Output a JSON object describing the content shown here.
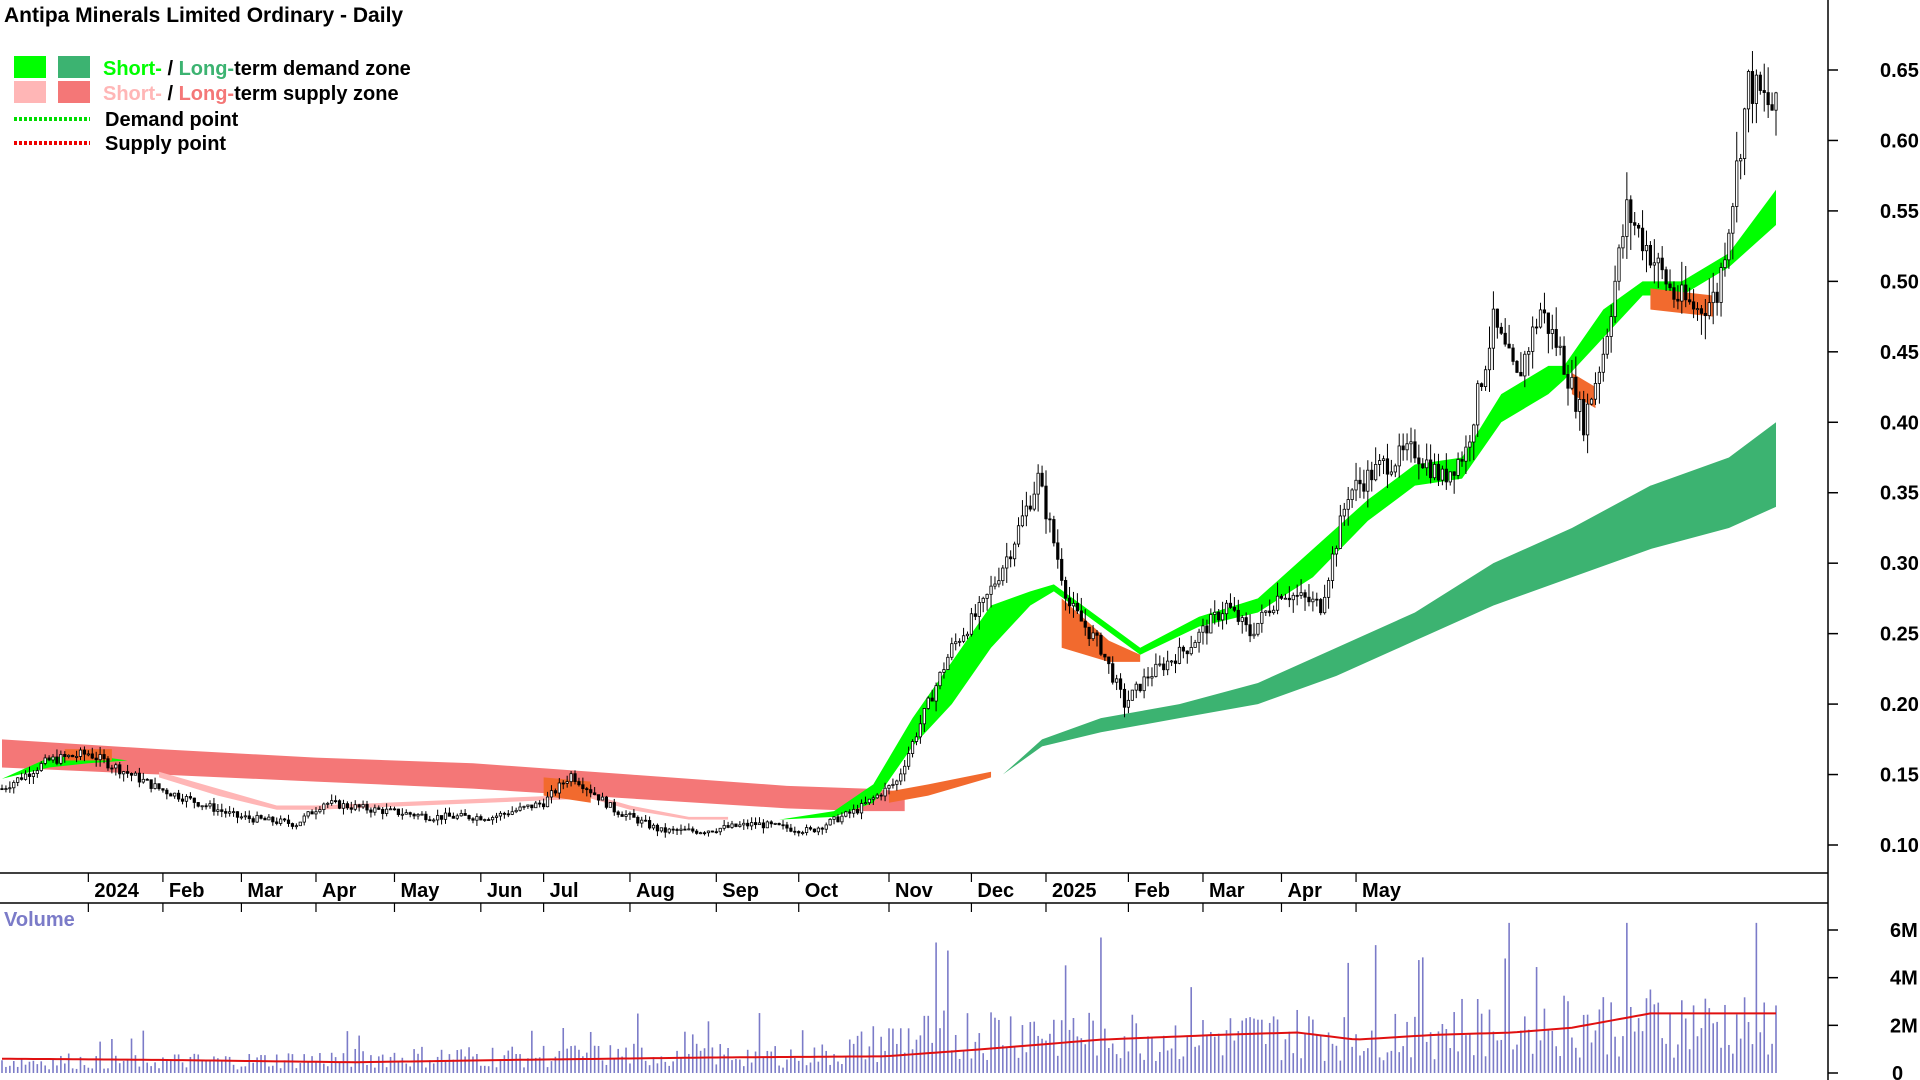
{
  "title": "Antipa Minerals Limited Ordinary - Daily",
  "legend": [
    {
      "part1": "Short-",
      "sep": " / ",
      "part2": "Long-",
      "rest": "term demand zone",
      "color1": "#00ff00",
      "color2": "#3cb371"
    },
    {
      "part1": "Short-",
      "sep": " / ",
      "part2": "Long-",
      "rest": "term supply zone",
      "color1": "#ffb6b6",
      "color2": "#f47777"
    },
    {
      "label": "Demand point",
      "color": "#00dd00"
    },
    {
      "label": "Supply point",
      "color": "#ee0000"
    }
  ],
  "colors": {
    "short_demand": "#00ff00",
    "long_demand": "#3cb371",
    "short_supply": "#ffb6b6",
    "long_supply": "#f47777",
    "transition": "#f26a2e",
    "volume_bars": "#7b7bc8",
    "volume_avg": "#e01010"
  },
  "chart_data": [
    {
      "type": "candlestick",
      "ylim": [
        0.06,
        0.7
      ],
      "yticks": [
        "0.65",
        "0.60",
        "0.55",
        "0.50",
        "0.45",
        "0.40",
        "0.35",
        "0.30",
        "0.25",
        "0.20",
        "0.15",
        "0.10"
      ],
      "xticks": [
        "2024",
        "Feb",
        "Mar",
        "Apr",
        "May",
        "Jun",
        "Jul",
        "Aug",
        "Sep",
        "Oct",
        "Nov",
        "Dec",
        "2025",
        "Feb",
        "Mar",
        "Apr",
        "May"
      ],
      "price_path": [
        [
          0,
          0.14
        ],
        [
          12,
          0.16
        ],
        [
          22,
          0.165
        ],
        [
          40,
          0.14
        ],
        [
          60,
          0.12
        ],
        [
          75,
          0.115
        ],
        [
          82,
          0.13
        ],
        [
          95,
          0.125
        ],
        [
          110,
          0.12
        ],
        [
          125,
          0.12
        ],
        [
          138,
          0.13
        ],
        [
          145,
          0.15
        ],
        [
          156,
          0.125
        ],
        [
          168,
          0.11
        ],
        [
          178,
          0.11
        ],
        [
          192,
          0.115
        ],
        [
          206,
          0.11
        ],
        [
          218,
          0.125
        ],
        [
          228,
          0.145
        ],
        [
          236,
          0.2
        ],
        [
          242,
          0.24
        ],
        [
          250,
          0.27
        ],
        [
          257,
          0.31
        ],
        [
          264,
          0.36
        ],
        [
          272,
          0.27
        ],
        [
          280,
          0.24
        ],
        [
          286,
          0.2
        ],
        [
          292,
          0.22
        ],
        [
          302,
          0.24
        ],
        [
          312,
          0.27
        ],
        [
          318,
          0.25
        ],
        [
          326,
          0.28
        ],
        [
          336,
          0.27
        ],
        [
          343,
          0.35
        ],
        [
          352,
          0.37
        ],
        [
          360,
          0.38
        ],
        [
          367,
          0.36
        ],
        [
          373,
          0.38
        ],
        [
          380,
          0.47
        ],
        [
          386,
          0.43
        ],
        [
          392,
          0.48
        ],
        [
          397,
          0.45
        ],
        [
          403,
          0.4
        ],
        [
          408,
          0.45
        ],
        [
          414,
          0.55
        ],
        [
          420,
          0.52
        ],
        [
          426,
          0.49
        ],
        [
          432,
          0.48
        ],
        [
          437,
          0.49
        ],
        [
          441,
          0.56
        ],
        [
          445,
          0.64
        ],
        [
          452,
          0.62
        ]
      ],
      "short_demand_zone": [
        [
          0,
          0.147,
          0.147
        ],
        [
          12,
          0.155,
          0.162
        ],
        [
          22,
          0.158,
          0.164
        ],
        [
          32,
          0.16,
          0.16
        ],
        [
          198,
          0.118,
          0.118
        ],
        [
          212,
          0.12,
          0.124
        ],
        [
          222,
          0.13,
          0.143
        ],
        [
          232,
          0.17,
          0.19
        ],
        [
          242,
          0.2,
          0.23
        ],
        [
          252,
          0.24,
          0.27
        ],
        [
          262,
          0.27,
          0.28
        ],
        [
          268,
          0.28,
          0.285
        ],
        [
          290,
          0.235,
          0.24
        ],
        [
          305,
          0.255,
          0.262
        ],
        [
          320,
          0.265,
          0.275
        ],
        [
          334,
          0.29,
          0.31
        ],
        [
          348,
          0.33,
          0.345
        ],
        [
          360,
          0.355,
          0.37
        ],
        [
          372,
          0.36,
          0.375
        ],
        [
          382,
          0.4,
          0.42
        ],
        [
          394,
          0.42,
          0.44
        ],
        [
          398,
          0.43,
          0.44
        ],
        [
          408,
          0.46,
          0.48
        ],
        [
          418,
          0.49,
          0.5
        ],
        [
          428,
          0.49,
          0.5
        ],
        [
          440,
          0.51,
          0.52
        ],
        [
          452,
          0.54,
          0.565
        ]
      ],
      "long_demand_zone": [
        [
          255,
          0.15,
          0.15
        ],
        [
          265,
          0.17,
          0.175
        ],
        [
          280,
          0.18,
          0.19
        ],
        [
          300,
          0.19,
          0.2
        ],
        [
          320,
          0.2,
          0.215
        ],
        [
          340,
          0.22,
          0.24
        ],
        [
          360,
          0.245,
          0.265
        ],
        [
          380,
          0.27,
          0.3
        ],
        [
          400,
          0.29,
          0.325
        ],
        [
          420,
          0.31,
          0.355
        ],
        [
          440,
          0.325,
          0.375
        ],
        [
          452,
          0.34,
          0.4
        ]
      ],
      "long_supply_zone": [
        [
          0,
          0.155,
          0.175
        ],
        [
          40,
          0.15,
          0.168
        ],
        [
          80,
          0.145,
          0.162
        ],
        [
          120,
          0.14,
          0.158
        ],
        [
          160,
          0.133,
          0.15
        ],
        [
          200,
          0.126,
          0.142
        ],
        [
          220,
          0.124,
          0.14
        ],
        [
          230,
          0.124,
          0.138
        ]
      ],
      "short_supply_zone": [
        [
          40,
          0.148,
          0.152
        ],
        [
          55,
          0.135,
          0.14
        ],
        [
          70,
          0.125,
          0.128
        ],
        [
          80,
          0.125,
          0.128
        ],
        [
          150,
          0.133,
          0.136
        ],
        [
          160,
          0.125,
          0.128
        ],
        [
          175,
          0.118,
          0.12
        ],
        [
          185,
          0.118,
          0.12
        ]
      ],
      "transition_zones": [
        [
          [
            16,
            0.16,
            0.168
          ],
          [
            28,
            0.16,
            0.168
          ]
        ],
        [
          [
            138,
            0.135,
            0.148
          ],
          [
            150,
            0.13,
            0.145
          ]
        ],
        [
          [
            226,
            0.13,
            0.138
          ],
          [
            236,
            0.135,
            0.143
          ],
          [
            252,
            0.148,
            0.152
          ]
        ],
        [
          [
            270,
            0.24,
            0.275
          ],
          [
            282,
            0.23,
            0.245
          ],
          [
            290,
            0.23,
            0.235
          ]
        ],
        [
          [
            400,
            0.42,
            0.435
          ],
          [
            406,
            0.41,
            0.425
          ]
        ],
        [
          [
            420,
            0.48,
            0.495
          ],
          [
            436,
            0.475,
            0.49
          ]
        ]
      ]
    },
    {
      "type": "bar",
      "title": "Volume",
      "yticks": [
        "6M",
        "4M",
        "2M",
        "0"
      ],
      "ylim": [
        0,
        6.5
      ],
      "volume_path": [
        [
          0,
          0.6
        ],
        [
          60,
          0.6
        ],
        [
          100,
          0.8
        ],
        [
          160,
          0.9
        ],
        [
          210,
          0.9
        ],
        [
          230,
          1.8
        ],
        [
          260,
          2.2
        ],
        [
          300,
          1.8
        ],
        [
          340,
          2.0
        ],
        [
          380,
          2.4
        ],
        [
          420,
          2.6
        ],
        [
          452,
          2.4
        ]
      ],
      "avg_line": [
        [
          0,
          0.6
        ],
        [
          40,
          0.55
        ],
        [
          90,
          0.45
        ],
        [
          130,
          0.55
        ],
        [
          180,
          0.65
        ],
        [
          225,
          0.7
        ],
        [
          250,
          1.0
        ],
        [
          280,
          1.4
        ],
        [
          310,
          1.6
        ],
        [
          330,
          1.7
        ],
        [
          345,
          1.4
        ],
        [
          365,
          1.6
        ],
        [
          385,
          1.7
        ],
        [
          400,
          1.9
        ],
        [
          420,
          2.5
        ],
        [
          445,
          2.5
        ],
        [
          452,
          2.5
        ]
      ]
    }
  ]
}
